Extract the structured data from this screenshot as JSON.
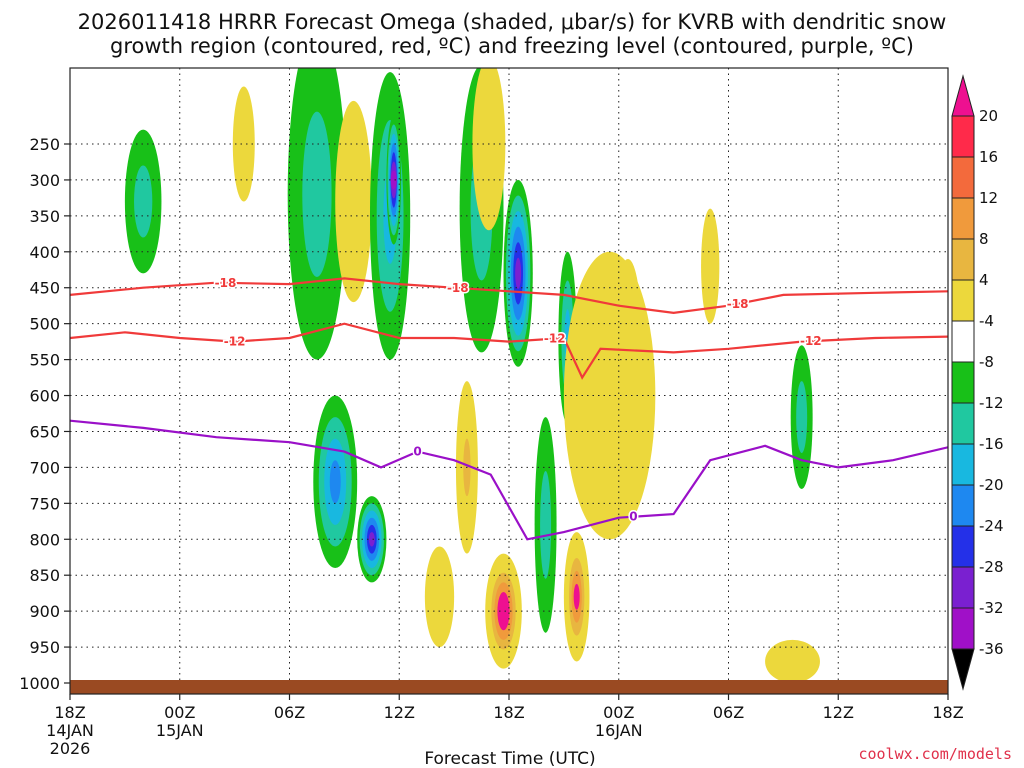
{
  "chart_data": {
    "type": "time-height contour",
    "title_line1": "2026011418 HRRR Forecast Omega (shaded, μbar/s) for KVRB with dendritic snow",
    "title_line2": "growth region (contoured, red, ºC) and freezing level (contoured, purple, ºC)",
    "xlabel": "Forecast Time (UTC)",
    "credit": "coolwx.com/models",
    "x_range_hours": [
      0,
      48
    ],
    "y_range_hPa": [
      1000,
      200
    ],
    "x_ticks": [
      {
        "hour": 0,
        "label": "18Z",
        "sub1": "14JAN",
        "sub2": "2026"
      },
      {
        "hour": 6,
        "label": "00Z",
        "sub1": "15JAN",
        "sub2": ""
      },
      {
        "hour": 12,
        "label": "06Z",
        "sub1": "",
        "sub2": ""
      },
      {
        "hour": 18,
        "label": "12Z",
        "sub1": "",
        "sub2": ""
      },
      {
        "hour": 24,
        "label": "18Z",
        "sub1": "",
        "sub2": ""
      },
      {
        "hour": 30,
        "label": "00Z",
        "sub1": "16JAN",
        "sub2": ""
      },
      {
        "hour": 36,
        "label": "06Z",
        "sub1": "",
        "sub2": ""
      },
      {
        "hour": 42,
        "label": "12Z",
        "sub1": "",
        "sub2": ""
      },
      {
        "hour": 48,
        "label": "18Z",
        "sub1": "",
        "sub2": ""
      }
    ],
    "y_ticks": [
      250,
      300,
      350,
      400,
      450,
      500,
      550,
      600,
      650,
      700,
      750,
      800,
      850,
      900,
      950,
      1000
    ],
    "colorbar": {
      "labels": [
        20,
        16,
        12,
        8,
        4,
        -4,
        -8,
        -12,
        -16,
        -20,
        -24,
        -28,
        -32,
        -36
      ],
      "colors": [
        "#ff2a4a",
        "#f36a3c",
        "#f09a3c",
        "#e8b640",
        "#ecd83c",
        "#ffffff",
        "#18c018",
        "#20c8a0",
        "#18b8e0",
        "#1e88f0",
        "#2430e8",
        "#7a20d0",
        "#a010c8",
        "#a8a8a8"
      ],
      "top_color": "#ee1090",
      "bottom_color": "#000000"
    },
    "omega_features": [
      {
        "hour": 4,
        "p": 330,
        "rh": 1.0,
        "rp": 100,
        "v": -9
      },
      {
        "hour": 9.5,
        "p": 250,
        "rh": 0.6,
        "rp": 80,
        "v": 6
      },
      {
        "hour": 13.5,
        "p": 320,
        "rh": 1.6,
        "rp": 230,
        "v": -10
      },
      {
        "hour": 14.5,
        "p": 720,
        "rh": 1.2,
        "rp": 120,
        "v": -16
      },
      {
        "hour": 15.5,
        "p": 330,
        "rh": 1.0,
        "rp": 140,
        "v": 10
      },
      {
        "hour": 16.5,
        "p": 800,
        "rh": 0.8,
        "rp": 60,
        "v": -26
      },
      {
        "hour": 17.5,
        "p": 350,
        "rh": 1.1,
        "rp": 200,
        "v": -14
      },
      {
        "hour": 17.7,
        "p": 300,
        "rh": 0.4,
        "rp": 90,
        "v": -30
      },
      {
        "hour": 20.2,
        "p": 880,
        "rh": 0.8,
        "rp": 70,
        "v": 8
      },
      {
        "hour": 21.7,
        "p": 700,
        "rh": 0.6,
        "rp": 120,
        "v": 12
      },
      {
        "hour": 22.5,
        "p": 340,
        "rh": 1.2,
        "rp": 200,
        "v": -9
      },
      {
        "hour": 22.9,
        "p": 250,
        "rh": 0.9,
        "rp": 120,
        "v": 4
      },
      {
        "hour": 23.7,
        "p": 900,
        "rh": 1.0,
        "rp": 80,
        "v": 24
      },
      {
        "hour": 24.5,
        "p": 430,
        "rh": 0.8,
        "rp": 130,
        "v": -24
      },
      {
        "hour": 26.0,
        "p": 780,
        "rh": 0.6,
        "rp": 150,
        "v": -8
      },
      {
        "hour": 27.7,
        "p": 880,
        "rh": 0.7,
        "rp": 90,
        "v": 20
      },
      {
        "hour": 27.2,
        "p": 520,
        "rh": 0.5,
        "rp": 120,
        "v": -12
      },
      {
        "hour": 29.5,
        "p": 600,
        "rh": 2.5,
        "rp": 200,
        "v": 5
      },
      {
        "hour": 30.5,
        "p": 500,
        "rh": 0.7,
        "rp": 90,
        "v": 10
      },
      {
        "hour": 35.0,
        "p": 420,
        "rh": 0.5,
        "rp": 80,
        "v": 4
      },
      {
        "hour": 40.0,
        "p": 630,
        "rh": 0.6,
        "rp": 100,
        "v": -9
      },
      {
        "hour": 39.5,
        "p": 970,
        "rh": 1.5,
        "rp": 30,
        "v": 4
      }
    ],
    "dgz_line_upper": {
      "label": "-18",
      "points": [
        [
          0,
          460
        ],
        [
          4,
          450
        ],
        [
          8,
          443
        ],
        [
          12,
          445
        ],
        [
          15,
          437
        ],
        [
          18,
          445
        ],
        [
          21,
          450
        ],
        [
          24,
          455
        ],
        [
          27,
          460
        ],
        [
          30,
          475
        ],
        [
          33,
          485
        ],
        [
          36,
          475
        ],
        [
          39,
          460
        ],
        [
          44,
          457
        ],
        [
          48,
          455
        ]
      ]
    },
    "dgz_line_lower": {
      "label": "-12",
      "points": [
        [
          0,
          520
        ],
        [
          3,
          512
        ],
        [
          6,
          520
        ],
        [
          9,
          525
        ],
        [
          12,
          520
        ],
        [
          15,
          500
        ],
        [
          18,
          520
        ],
        [
          21,
          520
        ],
        [
          24,
          525
        ],
        [
          27,
          520
        ],
        [
          28,
          575
        ],
        [
          29,
          535
        ],
        [
          33,
          540
        ],
        [
          36,
          535
        ],
        [
          40,
          525
        ],
        [
          44,
          520
        ],
        [
          48,
          518
        ]
      ]
    },
    "freezing_line": {
      "label": "0",
      "points": [
        [
          0,
          635
        ],
        [
          4,
          645
        ],
        [
          8,
          658
        ],
        [
          12,
          665
        ],
        [
          15,
          678
        ],
        [
          17,
          700
        ],
        [
          19,
          678
        ],
        [
          21,
          690
        ],
        [
          23,
          710
        ],
        [
          25,
          800
        ],
        [
          27,
          790
        ],
        [
          30,
          770
        ],
        [
          33,
          765
        ],
        [
          35,
          690
        ],
        [
          38,
          670
        ],
        [
          40,
          690
        ],
        [
          42,
          700
        ],
        [
          45,
          690
        ],
        [
          48,
          672
        ]
      ]
    }
  }
}
